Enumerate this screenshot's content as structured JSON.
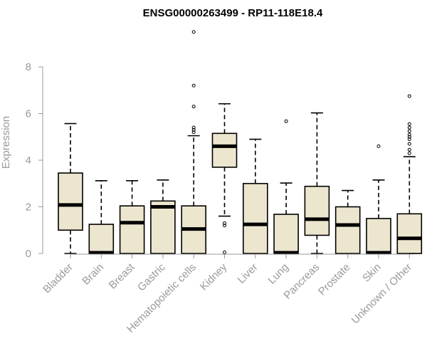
{
  "chart_data": {
    "type": "boxplot",
    "title": "ENSG00000263499 - RP11-118E18.4",
    "ylabel": "Expression",
    "ylim": [
      0,
      8
    ],
    "yticks": [
      0,
      2,
      4,
      6,
      8
    ],
    "box_color": "#ede6cf",
    "categories": [
      "Bladder",
      "Brain",
      "Breast",
      "Gastric",
      "Hematopoietic cells",
      "Kidney",
      "Liver",
      "Lung",
      "Pancreas",
      "Prostate",
      "Skin",
      "Unknown / Other"
    ],
    "series": [
      {
        "category": "Bladder",
        "min": 0,
        "q1": 1.0,
        "median": 2.08,
        "q3": 3.45,
        "max": 5.57,
        "outliers": []
      },
      {
        "category": "Brain",
        "min": 0,
        "q1": 0,
        "median": 0.03,
        "q3": 1.25,
        "max": 3.12,
        "outliers": []
      },
      {
        "category": "Breast",
        "min": 0,
        "q1": 0,
        "median": 1.32,
        "q3": 2.04,
        "max": 3.12,
        "outliers": []
      },
      {
        "category": "Gastric",
        "min": 0,
        "q1": 0,
        "median": 2.0,
        "q3": 2.25,
        "max": 3.15,
        "outliers": []
      },
      {
        "category": "Hematopoietic cells",
        "min": 0,
        "q1": 0,
        "median": 1.05,
        "q3": 2.04,
        "max": 5.05,
        "outliers": [
          9.5,
          7.2,
          6.3,
          5.4,
          5.3,
          5.2
        ]
      },
      {
        "category": "Kidney",
        "min": 1.6,
        "q1": 3.7,
        "median": 4.6,
        "q3": 5.15,
        "max": 6.42,
        "outliers": [
          1.3,
          1.2,
          0.05
        ]
      },
      {
        "category": "Liver",
        "min": 0,
        "q1": 0,
        "median": 1.25,
        "q3": 3.0,
        "max": 4.9,
        "outliers": []
      },
      {
        "category": "Lung",
        "min": 0,
        "q1": 0,
        "median": 0.03,
        "q3": 1.68,
        "max": 3.02,
        "outliers": [
          5.67
        ]
      },
      {
        "category": "Pancreas",
        "min": 0,
        "q1": 0.78,
        "median": 1.47,
        "q3": 2.88,
        "max": 6.03,
        "outliers": []
      },
      {
        "category": "Prostate",
        "min": 0,
        "q1": 0,
        "median": 1.22,
        "q3": 2.0,
        "max": 2.7,
        "outliers": []
      },
      {
        "category": "Skin",
        "min": 0,
        "q1": 0,
        "median": 0.03,
        "q3": 1.5,
        "max": 3.15,
        "outliers": [
          4.6
        ]
      },
      {
        "category": "Unknown / Other",
        "min": 0,
        "q1": 0,
        "median": 0.65,
        "q3": 1.7,
        "max": 4.15,
        "outliers": [
          6.75,
          5.55,
          5.4,
          5.25,
          5.1,
          5.0,
          4.9,
          4.7,
          4.45,
          4.3
        ]
      }
    ]
  }
}
